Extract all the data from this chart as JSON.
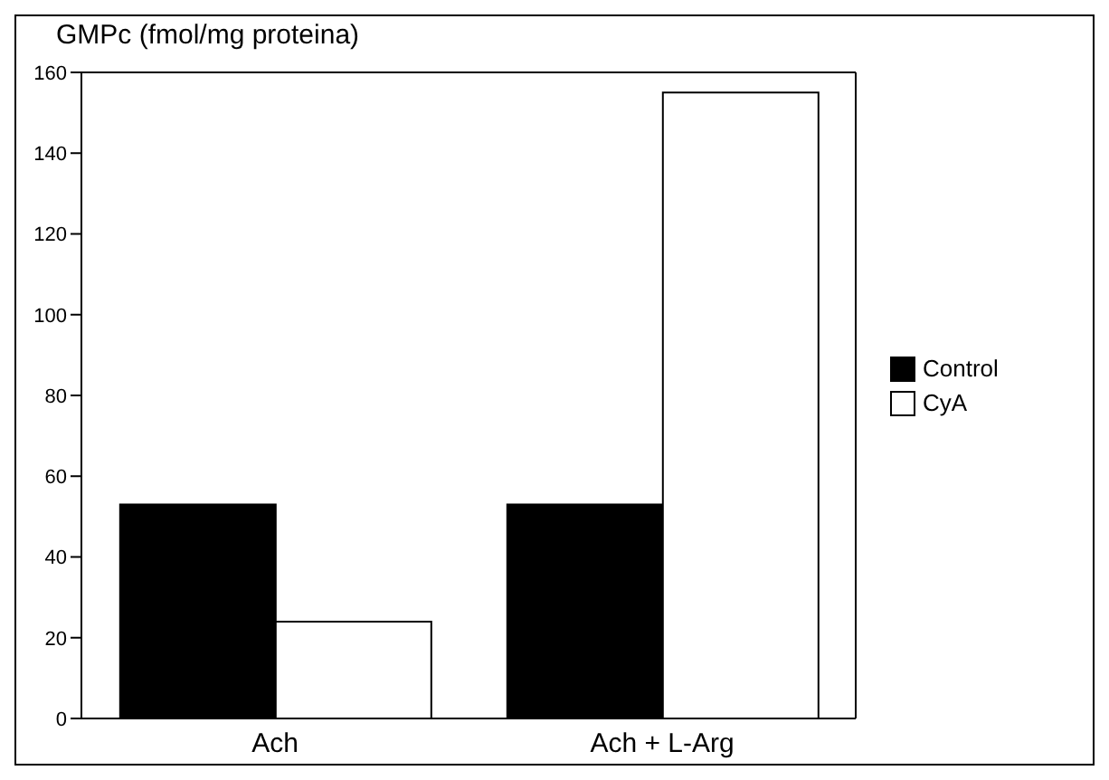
{
  "chart_data": {
    "type": "bar",
    "ylabel": "GMPc (fmol/mg proteina)",
    "categories": [
      "Ach",
      "Ach + L-Arg"
    ],
    "series": [
      {
        "name": "Control",
        "color": "#000000",
        "values": [
          53,
          53
        ]
      },
      {
        "name": "CyA",
        "color": "#ffffff",
        "values": [
          24,
          155
        ]
      }
    ],
    "ylim": [
      0,
      160
    ],
    "yticks": [
      0,
      20,
      40,
      60,
      80,
      100,
      120,
      140,
      160
    ],
    "grid": false,
    "legend": "right"
  }
}
